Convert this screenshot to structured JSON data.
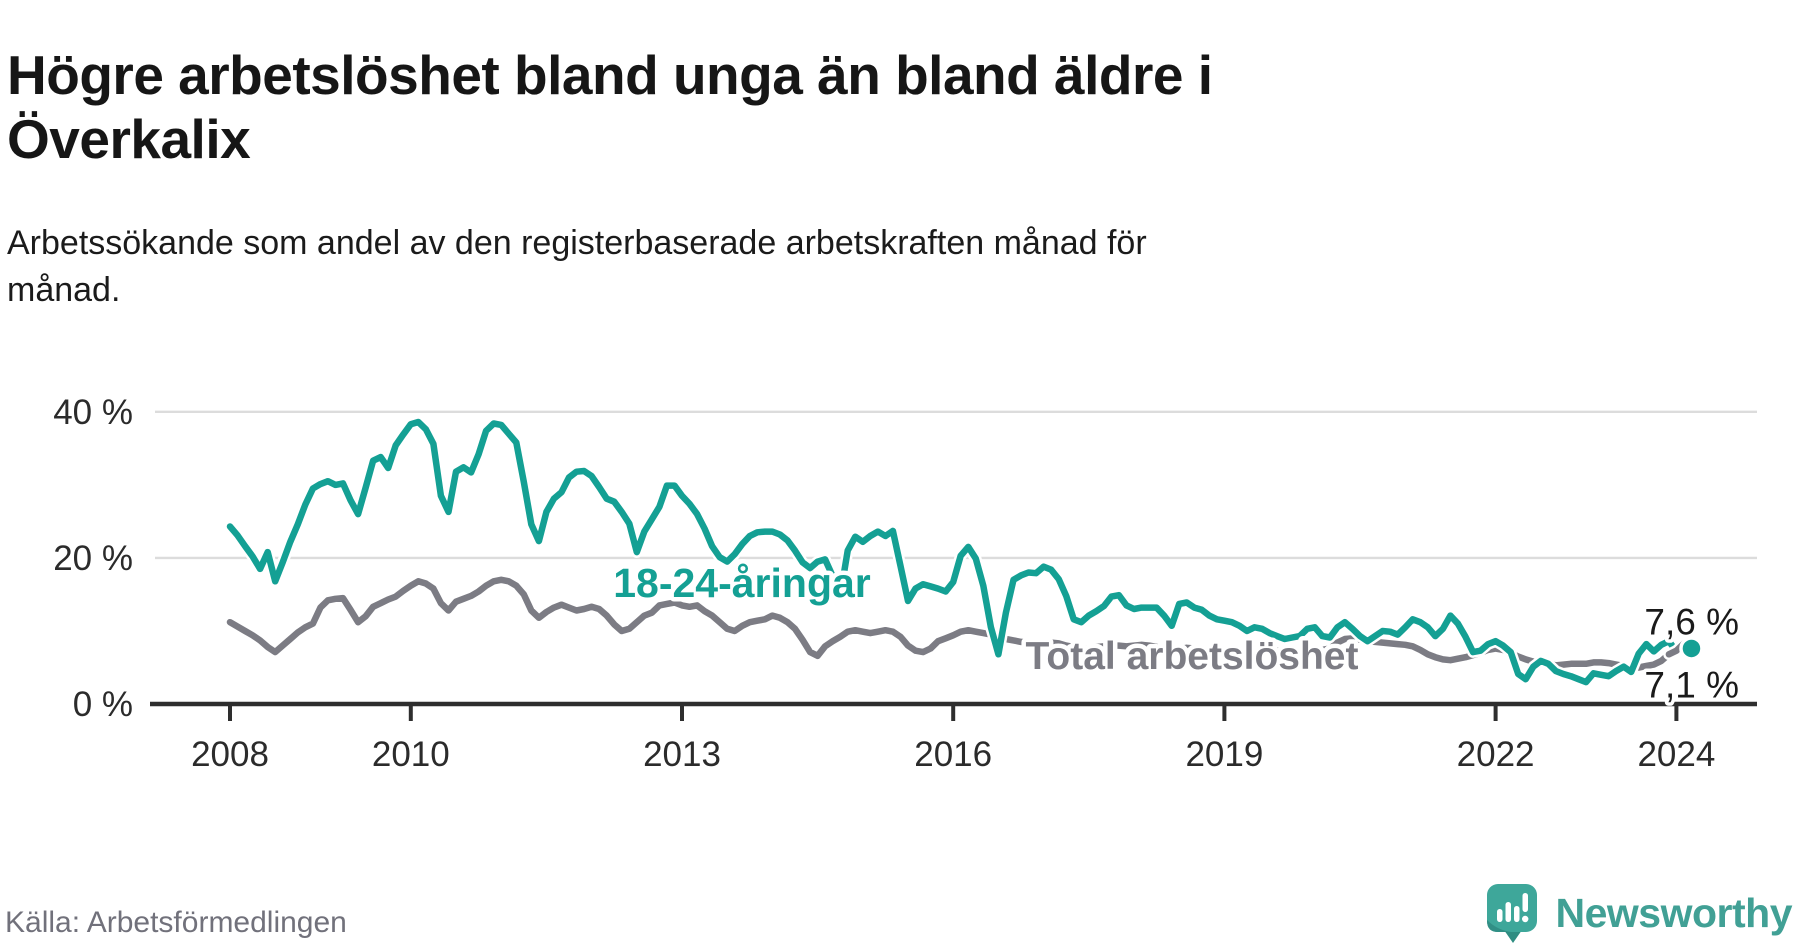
{
  "title_lines": [
    "Högre arbetslöshet bland unga än bland äldre i",
    "Överkalix"
  ],
  "subtitle_lines": [
    "Arbetssökande som andel av den registerbaserade arbetskraften månad för",
    "månad."
  ],
  "source": "Källa: Arbetsförmedlingen",
  "brand": {
    "name": "Newsworthy",
    "color": "#41A095",
    "icon": "speech-bubble-bar-chart"
  },
  "chart_data": {
    "type": "line",
    "title": "Högre arbetslöshet bland unga än bland äldre i Överkalix",
    "subtitle": "Arbetssökande som andel av den registerbaserade arbetskraften månad för månad.",
    "x_unit": "month",
    "x_start_year": 2008.0,
    "x_end_year": 2024.167,
    "ylim": [
      0,
      44
    ],
    "grid": "horizontal",
    "y_ticks": [
      {
        "value": 0,
        "label": "0 %"
      },
      {
        "value": 20,
        "label": "20 %"
      },
      {
        "value": 40,
        "label": "40 %"
      }
    ],
    "y_gridlines": [
      20,
      40
    ],
    "x_ticks": [
      {
        "year": 2008,
        "label": "2008"
      },
      {
        "year": 2010,
        "label": "2010"
      },
      {
        "year": 2013,
        "label": "2013"
      },
      {
        "year": 2016,
        "label": "2016"
      },
      {
        "year": 2019,
        "label": "2019"
      },
      {
        "year": 2022,
        "label": "2022"
      },
      {
        "year": 2024,
        "label": "2024"
      }
    ],
    "colors": {
      "youth": "#14A094",
      "total": "#7C7C84",
      "gridline": "#DCDCDC",
      "axis": "#2E2E2E",
      "end_label": "#1a1a1a"
    },
    "series": [
      {
        "name": "18-24-åringar",
        "color": "#14A094",
        "end_label": "7,6 %",
        "end_dot": true,
        "values": [
          24.3,
          23.1,
          21.6,
          20.2,
          18.5,
          20.8,
          16.8,
          19.4,
          22.2,
          24.6,
          27.3,
          29.5,
          30.1,
          30.5,
          30.0,
          30.2,
          27.9,
          26.0,
          29.6,
          33.3,
          33.8,
          32.3,
          35.4,
          36.9,
          38.3,
          38.6,
          37.6,
          35.6,
          28.5,
          26.3,
          31.8,
          32.4,
          31.7,
          34.2,
          37.4,
          38.4,
          38.2,
          37.0,
          35.8,
          30.4,
          24.6,
          22.3,
          26.3,
          28.1,
          29.0,
          31.0,
          31.8,
          31.9,
          31.2,
          29.7,
          28.1,
          27.7,
          26.3,
          24.7,
          20.8,
          23.6,
          25.3,
          27.0,
          29.9,
          29.9,
          28.5,
          27.4,
          26.0,
          24.0,
          21.6,
          20.1,
          19.5,
          20.5,
          21.9,
          23.0,
          23.5,
          23.6,
          23.6,
          23.2,
          22.4,
          21.0,
          19.4,
          18.6,
          19.5,
          19.8,
          17.5,
          14.8,
          21.0,
          22.9,
          22.2,
          23.0,
          23.6,
          23.0,
          23.7,
          18.9,
          14.1,
          15.8,
          16.4,
          16.1,
          15.8,
          15.4,
          16.7,
          20.3,
          21.5,
          19.9,
          16.2,
          10.5,
          6.8,
          12.5,
          17.0,
          17.6,
          18.0,
          17.9,
          18.8,
          18.4,
          17.1,
          14.8,
          11.6,
          11.2,
          12.1,
          12.7,
          13.4,
          14.7,
          14.9,
          13.5,
          13.0,
          13.2,
          13.2,
          13.2,
          12.1,
          10.7,
          13.7,
          13.9,
          13.2,
          12.9,
          12.1,
          11.6,
          11.4,
          11.2,
          10.7,
          10.0,
          10.5,
          10.3,
          9.7,
          9.3,
          8.9,
          9.1,
          9.3,
          10.3,
          10.5,
          9.3,
          9.1,
          10.5,
          11.2,
          10.3,
          9.3,
          8.6,
          9.3,
          10.0,
          9.9,
          9.5,
          10.5,
          11.6,
          11.2,
          10.5,
          9.3,
          10.3,
          12.1,
          11.0,
          9.2,
          7.1,
          7.3,
          8.2,
          8.6,
          8.0,
          7.1,
          4.1,
          3.4,
          5.1,
          5.9,
          5.5,
          4.5,
          4.1,
          3.8,
          3.4,
          3.0,
          4.2,
          4.0,
          3.8,
          4.5,
          5.1,
          4.4,
          6.9,
          8.2,
          7.2,
          8.1,
          8.6,
          7.2,
          8.4,
          7.6
        ]
      },
      {
        "name": "Total arbetslöshet",
        "color": "#7C7C84",
        "end_label": "7,1 %",
        "end_dot": false,
        "values": [
          11.2,
          10.6,
          10.0,
          9.4,
          8.7,
          7.8,
          7.1,
          8.0,
          8.9,
          9.8,
          10.5,
          11.0,
          13.2,
          14.2,
          14.4,
          14.5,
          12.9,
          11.2,
          12.0,
          13.3,
          13.8,
          14.3,
          14.7,
          15.5,
          16.2,
          16.8,
          16.5,
          15.8,
          13.8,
          12.8,
          14.0,
          14.4,
          14.8,
          15.4,
          16.2,
          16.8,
          17.0,
          16.8,
          16.2,
          15.0,
          12.8,
          11.8,
          12.6,
          13.2,
          13.6,
          13.2,
          12.8,
          13.0,
          13.3,
          13.0,
          12.1,
          10.9,
          10.0,
          10.3,
          11.2,
          12.1,
          12.5,
          13.5,
          13.7,
          13.9,
          13.5,
          13.3,
          13.5,
          12.7,
          12.1,
          11.2,
          10.3,
          10.0,
          10.7,
          11.2,
          11.4,
          11.6,
          12.1,
          11.8,
          11.2,
          10.3,
          8.8,
          7.1,
          6.6,
          7.9,
          8.6,
          9.2,
          9.9,
          10.1,
          9.9,
          9.7,
          9.9,
          10.1,
          9.9,
          9.2,
          8.0,
          7.3,
          7.1,
          7.6,
          8.6,
          9.0,
          9.4,
          9.9,
          10.1,
          9.9,
          9.7,
          9.5,
          9.3,
          8.9,
          8.7,
          8.5,
          8.4,
          8.3,
          8.3,
          8.4,
          8.3,
          8.0,
          7.8,
          7.5,
          7.6,
          7.8,
          7.9,
          8.0,
          8.0,
          7.9,
          8.0,
          8.1,
          8.0,
          7.8,
          7.6,
          7.4,
          7.5,
          7.7,
          7.6,
          7.5,
          7.4,
          7.4,
          7.5,
          7.6,
          7.5,
          7.3,
          7.1,
          7.0,
          7.2,
          7.3,
          7.2,
          7.1,
          7.1,
          7.2,
          7.3,
          7.4,
          7.6,
          8.4,
          8.9,
          9.0,
          8.8,
          8.6,
          8.5,
          8.4,
          8.3,
          8.2,
          8.1,
          7.9,
          7.4,
          6.8,
          6.4,
          6.1,
          6.0,
          6.2,
          6.4,
          6.7,
          7.0,
          7.4,
          7.6,
          7.4,
          7.0,
          6.5,
          6.1,
          5.8,
          5.5,
          5.5,
          5.3,
          5.4,
          5.5,
          5.5,
          5.5,
          5.7,
          5.7,
          5.6,
          5.4,
          5.2,
          5.0,
          5.0,
          5.2,
          5.4,
          5.9,
          6.8,
          7.3,
          8.3,
          7.1
        ]
      }
    ]
  }
}
